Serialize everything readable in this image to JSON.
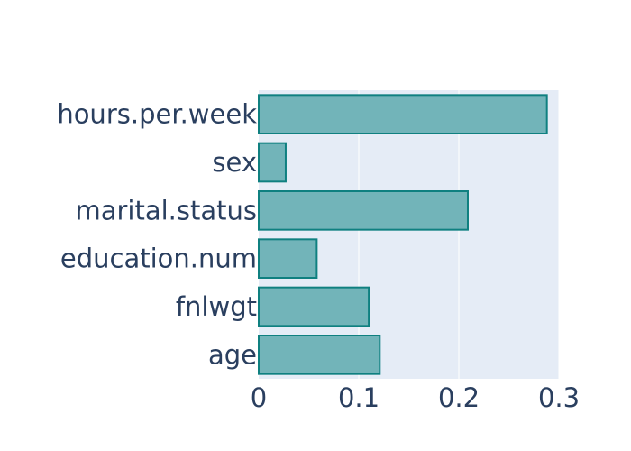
{
  "chart_data": {
    "type": "bar",
    "orientation": "horizontal",
    "categories": [
      "age",
      "fnlwgt",
      "education.num",
      "marital.status",
      "sex",
      "hours.per.week"
    ],
    "values": [
      0.121,
      0.11,
      0.058,
      0.209,
      0.027,
      0.288
    ],
    "xlim": [
      0,
      0.3
    ],
    "x_ticks": [
      0,
      0.1,
      0.2,
      0.3
    ],
    "x_tick_labels": [
      "0",
      "0.1",
      "0.2",
      "0.3"
    ],
    "title": "",
    "xlabel": "",
    "ylabel": "",
    "grid": true,
    "legend": "none",
    "colors": {
      "bar_fill": "#72b4b9",
      "bar_stroke": "#0f8080",
      "plot_background": "#e5ecf6",
      "grid": "#ffffff",
      "text": "#2a3f5f"
    }
  }
}
